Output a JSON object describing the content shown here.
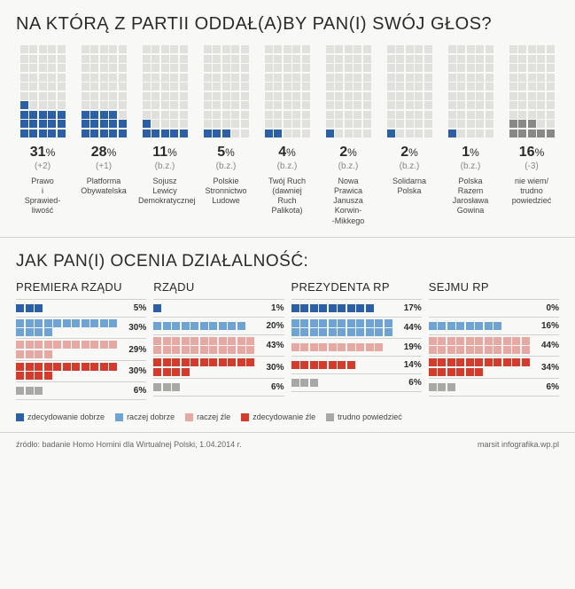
{
  "colors": {
    "blue": "#2b5fa8",
    "lightBlue": "#6ea3d6",
    "lightRed": "#e7a8a2",
    "red": "#d53a2a",
    "gray": "#a8a8a4",
    "cellEmpty": "#e0e0dc",
    "cellGray": "#888886"
  },
  "q1": {
    "title": "NA KTÓRĄ Z PARTII ODDAŁ(A)BY PAN(I) SWÓJ GŁOS?",
    "gridCols": 5,
    "gridRows": 10,
    "items": [
      {
        "pct": "31",
        "delta": "(+2)",
        "name": "Prawo\ni\nSprawied-\nliwość",
        "fill": 16,
        "color": "blue"
      },
      {
        "pct": "28",
        "delta": "(+1)",
        "name": "Platforma\nObywatelska",
        "fill": 14,
        "color": "blue"
      },
      {
        "pct": "11",
        "delta": "(b.z.)",
        "name": "Sojusz\nLewicy\nDemokratycznej",
        "fill": 6,
        "color": "blue"
      },
      {
        "pct": "5",
        "delta": "(b.z.)",
        "name": "Polskie\nStronnictwo\nLudowe",
        "fill": 3,
        "color": "blue"
      },
      {
        "pct": "4",
        "delta": "(b.z.)",
        "name": "Twój Ruch\n(dawniej\nRuch\nPalikota)",
        "fill": 2,
        "color": "blue"
      },
      {
        "pct": "2",
        "delta": "(b.z.)",
        "name": "Nowa\nPrawica\nJanusza\nKorwin-\n-Mikkego",
        "fill": 1,
        "color": "blue"
      },
      {
        "pct": "2",
        "delta": "(b.z.)",
        "name": "Solidarna\nPolska",
        "fill": 1,
        "color": "blue"
      },
      {
        "pct": "1",
        "delta": "(b.z.)",
        "name": "Polska\nRazem\nJarosława\nGowina",
        "fill": 1,
        "color": "blue"
      },
      {
        "pct": "16",
        "delta": "(-3)",
        "name": "nie wiem/\ntrudno\npowiedzieć",
        "fill": 8,
        "color": "gray"
      }
    ]
  },
  "q2": {
    "title": "JAK PAN(I) OCENIA DZIAŁALNOŚĆ:",
    "legend": [
      {
        "label": "zdecydowanie dobrze",
        "colorKey": "blue"
      },
      {
        "label": "raczej dobrze",
        "colorKey": "lightBlue"
      },
      {
        "label": "raczej źle",
        "colorKey": "lightRed"
      },
      {
        "label": "zdecydowanie źle",
        "colorKey": "red"
      },
      {
        "label": "trudno powiedzieć",
        "colorKey": "gray"
      }
    ],
    "colsPerRow": 11,
    "panels": [
      {
        "title": "PREMIERA RZĄDU",
        "rows": [
          {
            "cells": 3,
            "pct": "5%",
            "colorKey": "blue"
          },
          {
            "cells": 15,
            "pct": "30%",
            "colorKey": "lightBlue"
          },
          {
            "cells": 15,
            "pct": "29%",
            "colorKey": "lightRed"
          },
          {
            "cells": 15,
            "pct": "30%",
            "colorKey": "red"
          },
          {
            "cells": 3,
            "pct": "6%",
            "colorKey": "gray"
          }
        ]
      },
      {
        "title": "RZĄDU",
        "rows": [
          {
            "cells": 1,
            "pct": "1%",
            "colorKey": "blue"
          },
          {
            "cells": 10,
            "pct": "20%",
            "colorKey": "lightBlue"
          },
          {
            "cells": 22,
            "pct": "43%",
            "colorKey": "lightRed"
          },
          {
            "cells": 15,
            "pct": "30%",
            "colorKey": "red"
          },
          {
            "cells": 3,
            "pct": "6%",
            "colorKey": "gray"
          }
        ]
      },
      {
        "title": "PREZYDENTA RP",
        "rows": [
          {
            "cells": 9,
            "pct": "17%",
            "colorKey": "blue"
          },
          {
            "cells": 22,
            "pct": "44%",
            "colorKey": "lightBlue"
          },
          {
            "cells": 10,
            "pct": "19%",
            "colorKey": "lightRed"
          },
          {
            "cells": 7,
            "pct": "14%",
            "colorKey": "red"
          },
          {
            "cells": 3,
            "pct": "6%",
            "colorKey": "gray"
          }
        ]
      },
      {
        "title": "SEJMU RP",
        "rows": [
          {
            "cells": 0,
            "pct": "0%",
            "colorKey": "blue"
          },
          {
            "cells": 8,
            "pct": "16%",
            "colorKey": "lightBlue"
          },
          {
            "cells": 22,
            "pct": "44%",
            "colorKey": "lightRed"
          },
          {
            "cells": 17,
            "pct": "34%",
            "colorKey": "red"
          },
          {
            "cells": 3,
            "pct": "6%",
            "colorKey": "gray"
          }
        ]
      }
    ]
  },
  "footer": {
    "source": "źródło: badanie Homo Homini dla Wirtualnej Polski, 1.04.2014 r.",
    "credit": "marsit infografika.wp.pl"
  }
}
